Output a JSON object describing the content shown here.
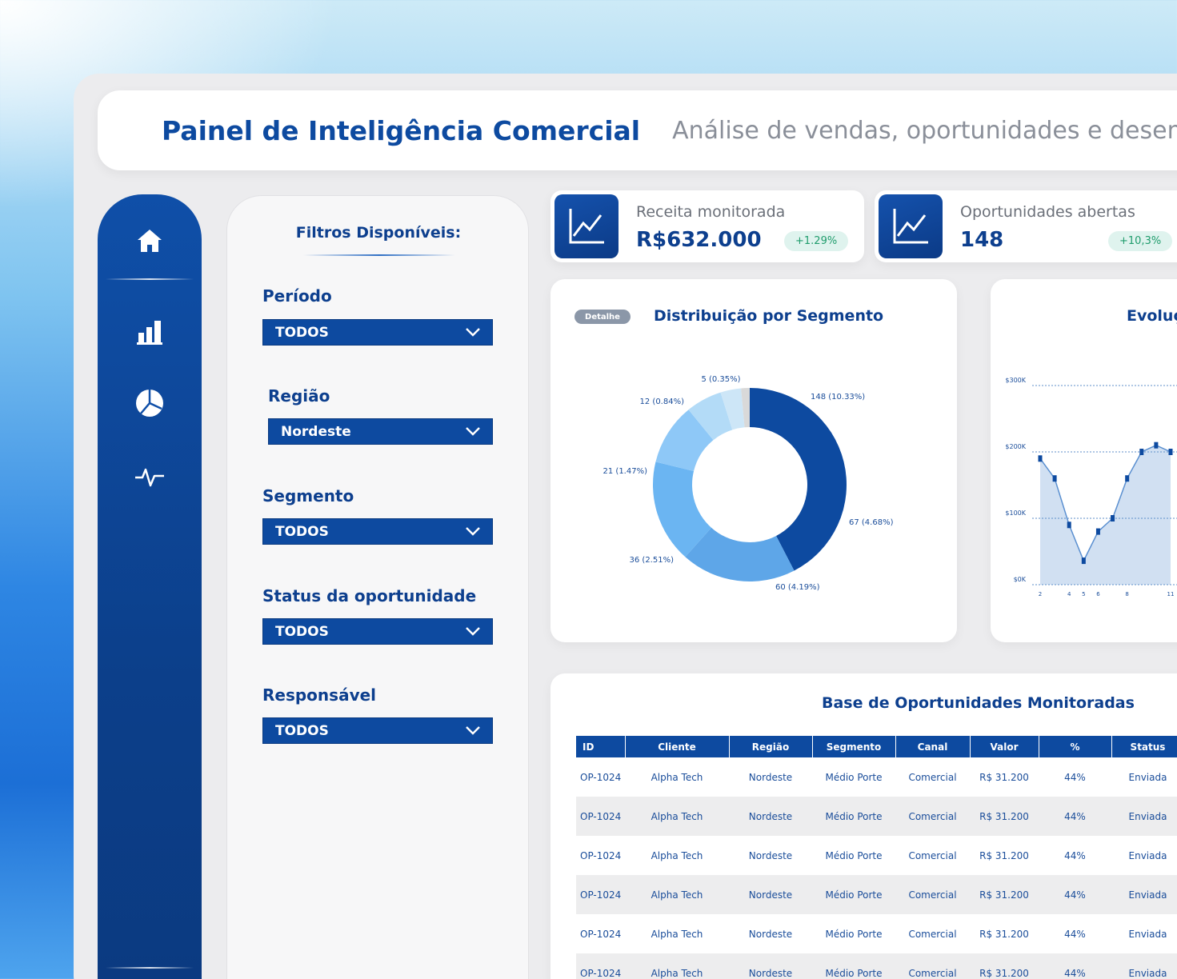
{
  "header": {
    "title": "Painel de Inteligência Comercial",
    "subtitle": "Análise de vendas, oportunidades e desempenho p"
  },
  "sidebar": {
    "icons": [
      "home-icon",
      "bar-chart-icon",
      "pie-chart-icon",
      "activity-icon"
    ]
  },
  "filters": {
    "title": "Filtros Disponíveis:",
    "items": [
      {
        "label": "Período",
        "value": "TODOS"
      },
      {
        "label": "Região",
        "value": "Nordeste"
      },
      {
        "label": "Segmento",
        "value": "TODOS"
      },
      {
        "label": "Status da oportunidade",
        "value": "TODOS"
      },
      {
        "label": "Responsável",
        "value": "TODOS"
      }
    ]
  },
  "kpis": [
    {
      "label": "Receita monitorada",
      "value": "R$632.000",
      "delta": "+1.29%"
    },
    {
      "label": "Oportunidades abertas",
      "value": "148",
      "delta": "+10,3%"
    }
  ],
  "segment_card": {
    "pill": "Detalhe",
    "title": "Distribuição por Segmento"
  },
  "evolution_card": {
    "title": "Evoluç"
  },
  "table_card": {
    "title": "Base de Oportunidades Monitoradas",
    "columns": [
      "ID",
      "Cliente",
      "Região",
      "Segmento",
      "Canal",
      "Valor",
      "%",
      "Status"
    ],
    "rows": [
      [
        "OP-1024",
        "Alpha Tech",
        "Nordeste",
        "Médio Porte",
        "Comercial",
        "R$ 31.200",
        "44%",
        "Enviada"
      ],
      [
        "OP-1024",
        "Alpha Tech",
        "Nordeste",
        "Médio Porte",
        "Comercial",
        "R$ 31.200",
        "44%",
        "Enviada"
      ],
      [
        "OP-1024",
        "Alpha Tech",
        "Nordeste",
        "Médio Porte",
        "Comercial",
        "R$ 31.200",
        "44%",
        "Enviada"
      ],
      [
        "OP-1024",
        "Alpha Tech",
        "Nordeste",
        "Médio Porte",
        "Comercial",
        "R$ 31.200",
        "44%",
        "Enviada"
      ],
      [
        "OP-1024",
        "Alpha Tech",
        "Nordeste",
        "Médio Porte",
        "Comercial",
        "R$ 31.200",
        "44%",
        "Enviada"
      ],
      [
        "OP-1024",
        "Alpha Tech",
        "Nordeste",
        "Médio Porte",
        "Comercial",
        "R$ 31.200",
        "44%",
        "Enviada"
      ]
    ]
  },
  "chart_data": [
    {
      "type": "pie",
      "variant": "donut",
      "title": "Distribuição por Segmento",
      "slices": [
        {
          "value": 148,
          "label": "148 (10.33%)",
          "color": "#0d4aa0"
        },
        {
          "value": 67,
          "label": "67 (4.68%)",
          "color": "#5ea6e8"
        },
        {
          "value": 60,
          "label": "60 (4.19%)",
          "color": "#6bb5f2"
        },
        {
          "value": 36,
          "label": "36 (2.51%)",
          "color": "#8ec8f7"
        },
        {
          "value": 21,
          "label": "21 (1.47%)",
          "color": "#b3dbf7"
        },
        {
          "value": 12,
          "label": "12 (0.84%)",
          "color": "#cde6f7"
        },
        {
          "value": 5,
          "label": "5 (0.35%)",
          "color": "#d9d9d9"
        }
      ]
    },
    {
      "type": "area",
      "title": "Evoluç",
      "x": [
        2,
        3,
        4,
        5,
        6,
        7,
        8,
        9,
        10,
        11
      ],
      "x_ticks": [
        "2",
        "4",
        "5",
        "6",
        "8",
        "11"
      ],
      "y": [
        190,
        160,
        90,
        36,
        80,
        100,
        160,
        200,
        210,
        200
      ],
      "y_ticks": [
        "$0K",
        "$100K",
        "$200K",
        "$300K"
      ],
      "ylim": [
        0,
        300
      ],
      "grid": true,
      "color": "#5a8fd0"
    }
  ]
}
